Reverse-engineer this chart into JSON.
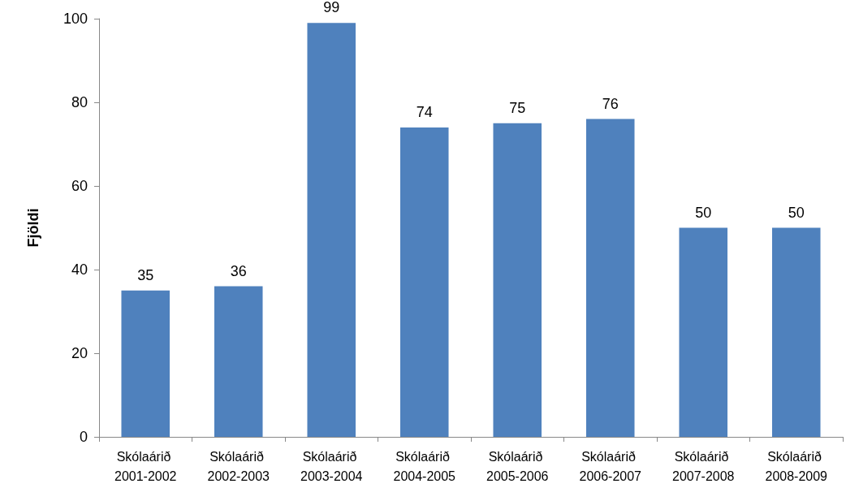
{
  "chart_data": {
    "type": "bar",
    "ylabel": "Fjöldi",
    "categories": [
      "Skólaárið 2001-2002",
      "Skólaárið 2002-2003",
      "Skólaárið 2003-2004",
      "Skólaárið 2004-2005",
      "Skólaárið 2005-2006",
      "Skólaárið 2006-2007",
      "Skólaárið 2007-2008",
      "Skólaárið 2008-2009"
    ],
    "values": [
      35,
      36,
      99,
      74,
      75,
      76,
      50,
      50
    ],
    "color": "#4f81bd",
    "ylim": [
      0,
      100
    ],
    "yticks": [
      0,
      20,
      40,
      60,
      80,
      100
    ],
    "grid": false,
    "data_labels": true
  }
}
